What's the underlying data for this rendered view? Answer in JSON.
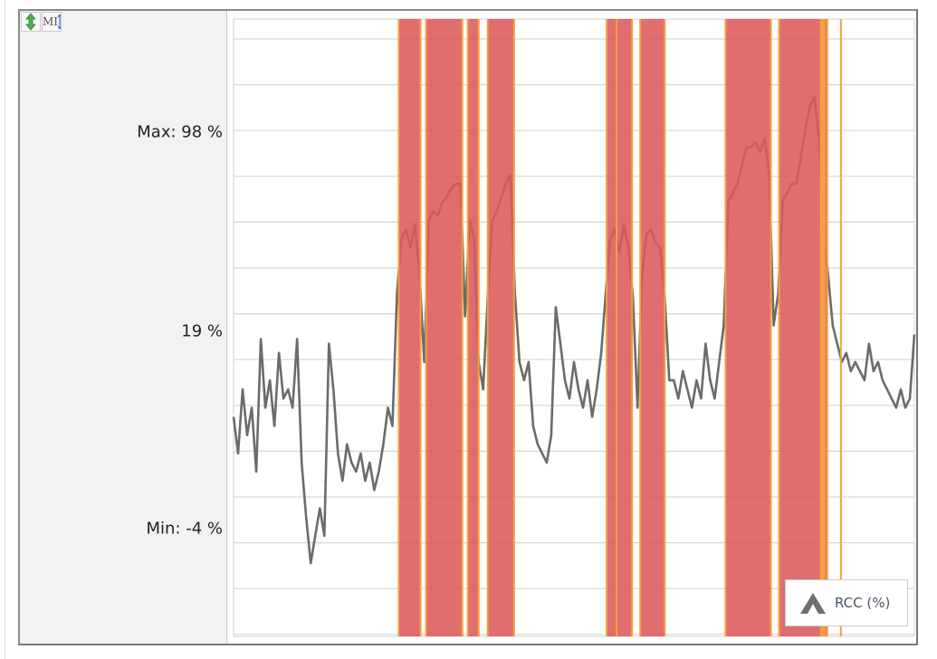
{
  "toolbar": {
    "buttons": [
      {
        "icon": "vertical-resize-icon"
      },
      {
        "icon": "mi-scale-icon",
        "label": "MI"
      }
    ]
  },
  "chart_data": {
    "type": "line",
    "xlabel": "",
    "ylabel": "",
    "ylim": [
      -20,
      115
    ],
    "xlim": [
      0,
      150
    ],
    "grid": true,
    "legend_placement": "bottom-right",
    "y_labels": [
      {
        "text": "Max: 98 %",
        "value": 98
      },
      {
        "text": "19 %",
        "value": 19
      },
      {
        "text": "Min: -4 %",
        "value": -4
      }
    ],
    "series": [
      {
        "name": "RCC (%)",
        "color": "#6b6b6b",
        "values": [
          28,
          20,
          34,
          24,
          30,
          16,
          45,
          30,
          36,
          26,
          42,
          32,
          34,
          30,
          45,
          18,
          6,
          -4,
          2,
          8,
          2,
          44,
          34,
          20,
          14,
          22,
          18,
          16,
          20,
          14,
          18,
          12,
          16,
          22,
          30,
          26,
          55,
          67,
          69,
          65,
          70,
          59,
          40,
          71,
          73,
          72,
          75,
          76,
          78,
          79,
          79,
          50,
          71,
          67,
          40,
          34,
          54,
          71,
          73,
          76,
          79,
          81,
          55,
          40,
          36,
          40,
          26,
          22,
          20,
          18,
          24,
          52,
          44,
          36,
          32,
          40,
          34,
          30,
          36,
          28,
          34,
          42,
          55,
          67,
          69,
          64,
          70,
          65,
          54,
          30,
          59,
          68,
          69,
          66,
          65,
          54,
          36,
          36,
          32,
          38,
          34,
          30,
          36,
          32,
          44,
          36,
          32,
          40,
          48,
          75,
          77,
          79,
          83,
          87,
          87,
          88,
          86,
          89,
          81,
          48,
          55,
          75,
          77,
          79,
          79,
          85,
          91,
          96,
          98,
          89,
          69,
          59,
          48,
          44,
          40,
          42,
          38,
          40,
          38,
          36,
          44,
          38,
          40,
          36,
          34,
          32,
          30,
          34,
          30,
          32,
          46
        ]
      }
    ],
    "highlight_intervals": [
      [
        36.4,
        41.2
      ],
      [
        42.4,
        50.4
      ],
      [
        51.6,
        54
      ],
      [
        56,
        61.8
      ],
      [
        82.2,
        84.4
      ],
      [
        84.4,
        87.8
      ],
      [
        89.6,
        95
      ],
      [
        108.4,
        118.4
      ],
      [
        120.2,
        129.4
      ],
      [
        129.6,
        130
      ],
      [
        130.2,
        130.8
      ],
      [
        133.8,
        133.8
      ]
    ],
    "highlight_color": "#dc5a5a",
    "highlight_edge_color": "#f5a040"
  }
}
